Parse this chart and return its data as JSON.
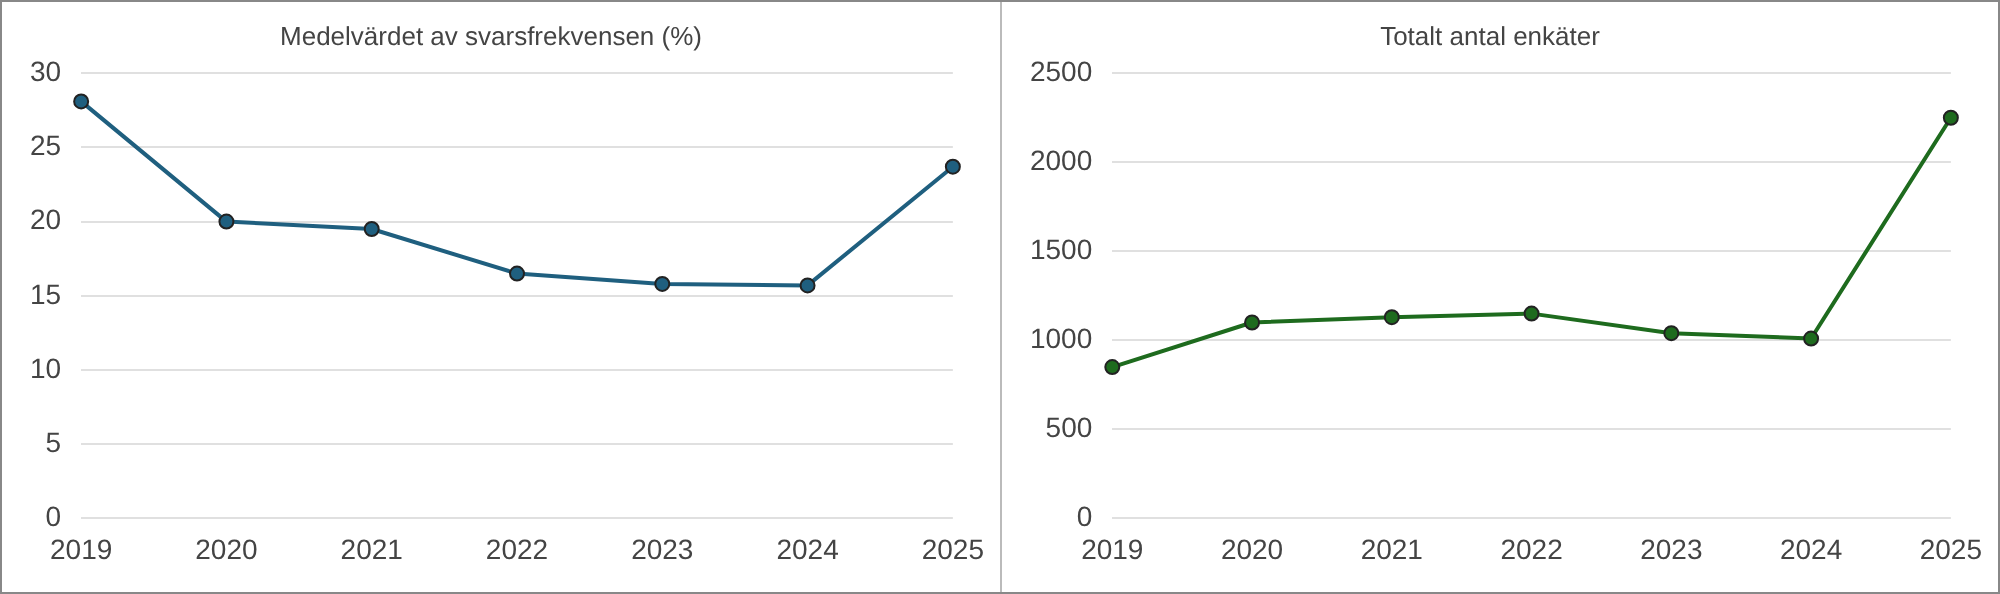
{
  "chart_data": [
    {
      "type": "line",
      "title": "Medelvärdet av svarsfrekvensen (%)",
      "categories": [
        "2019",
        "2020",
        "2021",
        "2022",
        "2023",
        "2024",
        "2025"
      ],
      "series": [
        {
          "color": "#1f5f7f",
          "values": [
            28.1,
            20.0,
            19.5,
            16.5,
            15.8,
            15.7,
            23.7
          ]
        }
      ],
      "ylim": [
        0,
        30
      ],
      "yticks": [
        0,
        5,
        10,
        15,
        20,
        25,
        30
      ],
      "grid": "y",
      "legend": false,
      "marker": "circle"
    },
    {
      "type": "line",
      "title": "Totalt antal enkäter",
      "categories": [
        "2019",
        "2020",
        "2021",
        "2022",
        "2023",
        "2024",
        "2025"
      ],
      "series": [
        {
          "color": "#1e6b1e",
          "values": [
            850,
            1100,
            1130,
            1150,
            1040,
            1010,
            2250
          ]
        }
      ],
      "ylim": [
        0,
        2500
      ],
      "yticks": [
        0,
        500,
        1000,
        1500,
        2000,
        2500
      ],
      "grid": "y",
      "legend": false,
      "marker": "circle"
    }
  ]
}
